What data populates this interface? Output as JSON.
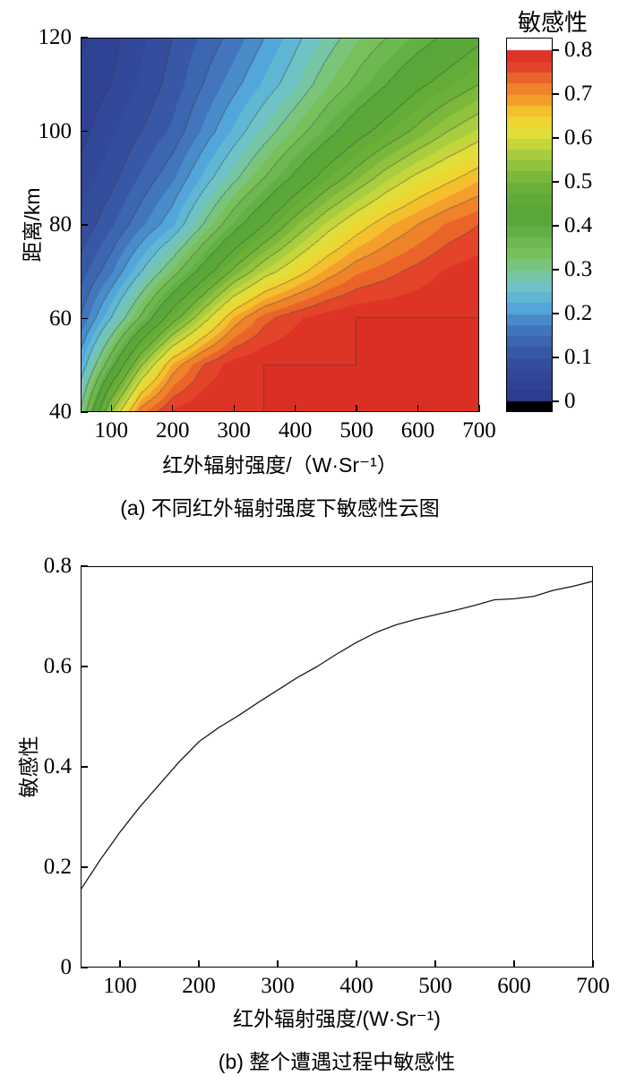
{
  "figure": {
    "background": "#ffffff"
  },
  "panel_a": {
    "colorbar_title": "敏感性",
    "ylabel": "距离/km",
    "xlabel": "红外辐射强度/（W·Sr⁻¹）",
    "caption": "(a) 不同红外辐射强度下敏感性云图",
    "x_ticks": [
      "100",
      "200",
      "300",
      "400",
      "500",
      "600",
      "700"
    ],
    "y_ticks": [
      "40",
      "60",
      "80",
      "100",
      "120"
    ],
    "colorbar_ticks": [
      "0",
      "0.1",
      "0.2",
      "0.3",
      "0.4",
      "0.5",
      "0.6",
      "0.7",
      "0.8"
    ]
  },
  "panel_b": {
    "ylabel": "敏感性",
    "xlabel": "红外辐射强度/(W·Sr⁻¹)",
    "caption": "(b) 整个遭遇过程中敏感性",
    "x_ticks": [
      "100",
      "200",
      "300",
      "400",
      "500",
      "600",
      "700"
    ],
    "y_ticks": [
      "0",
      "0.2",
      "0.4",
      "0.6",
      "0.8"
    ]
  },
  "chart_data": [
    {
      "type": "heatmap",
      "title": "不同红外辐射强度下敏感性云图",
      "xlabel": "红外辐射强度/（W·Sr⁻¹）",
      "ylabel": "距离/km",
      "zlabel": "敏感性",
      "xlim": [
        50,
        700
      ],
      "ylim": [
        40,
        120
      ],
      "zlim": [
        0,
        0.8
      ],
      "band_step": 0.025,
      "contour_interval": 0.05,
      "x": [
        50,
        100,
        150,
        200,
        250,
        300,
        350,
        400,
        450,
        500,
        550,
        600,
        650,
        700
      ],
      "y": [
        40,
        50,
        60,
        70,
        80,
        90,
        100,
        110,
        120
      ],
      "z": [
        [
          0.3,
          0.55,
          0.72,
          0.78,
          0.8,
          0.8,
          0.8,
          0.8,
          0.8,
          0.8,
          0.8,
          0.8,
          0.8,
          0.8
        ],
        [
          0.22,
          0.38,
          0.55,
          0.68,
          0.75,
          0.79,
          0.8,
          0.8,
          0.8,
          0.8,
          0.8,
          0.8,
          0.8,
          0.8
        ],
        [
          0.15,
          0.25,
          0.36,
          0.48,
          0.58,
          0.68,
          0.74,
          0.77,
          0.79,
          0.8,
          0.8,
          0.8,
          0.8,
          0.8
        ],
        [
          0.11,
          0.17,
          0.25,
          0.33,
          0.42,
          0.51,
          0.58,
          0.63,
          0.68,
          0.72,
          0.74,
          0.76,
          0.78,
          0.79
        ],
        [
          0.08,
          0.12,
          0.17,
          0.22,
          0.3,
          0.38,
          0.45,
          0.52,
          0.58,
          0.63,
          0.67,
          0.7,
          0.73,
          0.75
        ],
        [
          0.06,
          0.09,
          0.13,
          0.17,
          0.23,
          0.29,
          0.35,
          0.41,
          0.47,
          0.52,
          0.57,
          0.61,
          0.64,
          0.67
        ],
        [
          0.04,
          0.07,
          0.1,
          0.13,
          0.18,
          0.23,
          0.28,
          0.33,
          0.38,
          0.43,
          0.47,
          0.51,
          0.55,
          0.58
        ],
        [
          0.03,
          0.05,
          0.08,
          0.11,
          0.15,
          0.19,
          0.23,
          0.27,
          0.32,
          0.36,
          0.4,
          0.44,
          0.47,
          0.5
        ],
        [
          0.02,
          0.04,
          0.07,
          0.1,
          0.13,
          0.16,
          0.2,
          0.24,
          0.28,
          0.32,
          0.35,
          0.38,
          0.41,
          0.44
        ]
      ],
      "colormap": [
        [
          0.0,
          "#2C3A8E"
        ],
        [
          0.1,
          "#36509F"
        ],
        [
          0.17,
          "#4379C0"
        ],
        [
          0.22,
          "#55AEDE"
        ],
        [
          0.27,
          "#74C7C0"
        ],
        [
          0.33,
          "#7CC360"
        ],
        [
          0.42,
          "#55A536"
        ],
        [
          0.5,
          "#6FB23A"
        ],
        [
          0.56,
          "#A5CC3E"
        ],
        [
          0.61,
          "#E0DF3A"
        ],
        [
          0.65,
          "#F4D22F"
        ],
        [
          0.68,
          "#F5A62C"
        ],
        [
          0.72,
          "#EE7B2A"
        ],
        [
          0.77,
          "#E23A2A"
        ],
        [
          0.8,
          "#DC2F24"
        ]
      ],
      "colorbar_bottom_strip_color": "#000000"
    },
    {
      "type": "line",
      "title": "整个遭遇过程中敏感性",
      "xlabel": "红外辐射强度/(W·Sr⁻¹)",
      "ylabel": "敏感性",
      "xlim": [
        50,
        700
      ],
      "ylim": [
        0,
        0.8
      ],
      "line_color": "#1a1a1a",
      "x": [
        50,
        75,
        100,
        125,
        150,
        175,
        200,
        225,
        250,
        275,
        300,
        325,
        350,
        375,
        400,
        425,
        450,
        475,
        500,
        525,
        550,
        575,
        600,
        625,
        650,
        675,
        700
      ],
      "y": [
        0.155,
        0.215,
        0.27,
        0.32,
        0.365,
        0.41,
        0.45,
        0.478,
        0.502,
        0.528,
        0.553,
        0.578,
        0.6,
        0.625,
        0.648,
        0.668,
        0.683,
        0.694,
        0.703,
        0.712,
        0.722,
        0.733,
        0.735,
        0.74,
        0.752,
        0.76,
        0.77
      ]
    }
  ]
}
